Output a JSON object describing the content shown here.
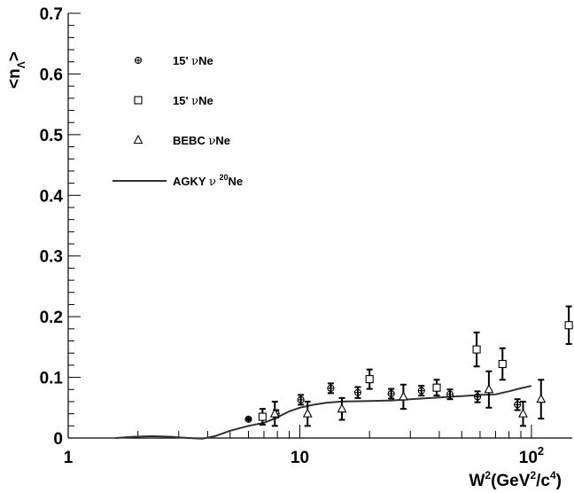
{
  "chart_data": {
    "type": "scatter",
    "x_scale": "log",
    "xlim": [
      1,
      150
    ],
    "ylim": [
      0,
      0.7
    ],
    "xlabel": {
      "base": "W",
      "sup1": "2",
      "mid": "(GeV",
      "sup2": "2",
      "mid2": "/c",
      "sup3": "4",
      "end": ")"
    },
    "ylabel": {
      "open": "<n",
      "sub": "Λ",
      "close": ">"
    },
    "x_ticks": [
      {
        "value": 1,
        "label": "1"
      },
      {
        "value": 10,
        "label": "10"
      },
      {
        "value": 100,
        "label": "10",
        "sup": "2"
      }
    ],
    "y_ticks": [
      {
        "value": 0,
        "label": "0"
      },
      {
        "value": 0.1,
        "label": "0.1"
      },
      {
        "value": 0.2,
        "label": "0.2"
      },
      {
        "value": 0.3,
        "label": "0.3"
      },
      {
        "value": 0.4,
        "label": "0.4"
      },
      {
        "value": 0.5,
        "label": "0.5"
      },
      {
        "value": 0.6,
        "label": "0.6"
      },
      {
        "value": 0.7,
        "label": "0.7"
      }
    ],
    "grid": false,
    "legend_position": "top-left",
    "series": [
      {
        "name": "15' νNe",
        "label": {
          "pre": "15' ",
          "nu": "ν",
          "post": "Ne"
        },
        "marker": "crossed-circle",
        "points": [
          {
            "x": 6.0,
            "y": 0.031,
            "err": 0.002
          },
          {
            "x": 7.9,
            "y": 0.04,
            "err": 0.006
          },
          {
            "x": 10.1,
            "y": 0.063,
            "err": 0.008
          },
          {
            "x": 13.6,
            "y": 0.082,
            "err": 0.008
          },
          {
            "x": 17.8,
            "y": 0.075,
            "err": 0.009
          },
          {
            "x": 24.8,
            "y": 0.073,
            "err": 0.008
          },
          {
            "x": 33.5,
            "y": 0.078,
            "err": 0.008
          },
          {
            "x": 44.5,
            "y": 0.072,
            "err": 0.008
          },
          {
            "x": 58.5,
            "y": 0.068,
            "err": 0.009
          },
          {
            "x": 87.0,
            "y": 0.055,
            "err": 0.009
          }
        ]
      },
      {
        "name": "15' νNe",
        "label": {
          "pre": "15' ",
          "nu": "ν",
          "post": "Ne"
        },
        "marker": "open-square",
        "points": [
          {
            "x": 6.9,
            "y": 0.035,
            "err": 0.013
          },
          {
            "x": 20.0,
            "y": 0.097,
            "err": 0.016
          },
          {
            "x": 39.0,
            "y": 0.083,
            "err": 0.013
          },
          {
            "x": 58.0,
            "y": 0.146,
            "err": 0.028
          },
          {
            "x": 75.0,
            "y": 0.122,
            "err": 0.026
          },
          {
            "x": 145.0,
            "y": 0.186,
            "err": 0.031
          }
        ]
      },
      {
        "name": "BEBC νNe",
        "label": {
          "pre": "BEBC ",
          "nu": "ν",
          "post": "Ne"
        },
        "marker": "open-triangle",
        "points": [
          {
            "x": 7.8,
            "y": 0.04,
            "err": 0.02
          },
          {
            "x": 10.8,
            "y": 0.04,
            "err": 0.02
          },
          {
            "x": 15.2,
            "y": 0.048,
            "err": 0.018
          },
          {
            "x": 28.0,
            "y": 0.068,
            "err": 0.02
          },
          {
            "x": 65.5,
            "y": 0.08,
            "err": 0.03
          },
          {
            "x": 92.0,
            "y": 0.04,
            "err": 0.02
          },
          {
            "x": 110.0,
            "y": 0.064,
            "err": 0.032
          }
        ]
      },
      {
        "name": "AGKY ν 20Ne",
        "label": {
          "pre": "AGKY ",
          "nu": "ν",
          "sup": "20",
          "post": "Ne"
        },
        "marker": "line",
        "points": [
          {
            "x": 1.6,
            "y": 0.0
          },
          {
            "x": 1.9,
            "y": 0.002
          },
          {
            "x": 2.3,
            "y": 0.003
          },
          {
            "x": 2.8,
            "y": 0.002
          },
          {
            "x": 3.3,
            "y": 0.0
          },
          {
            "x": 3.8,
            "y": -0.001
          },
          {
            "x": 4.3,
            "y": 0.003
          },
          {
            "x": 5.0,
            "y": 0.012
          },
          {
            "x": 6.0,
            "y": 0.02
          },
          {
            "x": 7.0,
            "y": 0.025
          },
          {
            "x": 8.0,
            "y": 0.034
          },
          {
            "x": 9.0,
            "y": 0.044
          },
          {
            "x": 10.0,
            "y": 0.05
          },
          {
            "x": 11.5,
            "y": 0.055
          },
          {
            "x": 13.0,
            "y": 0.058
          },
          {
            "x": 15.0,
            "y": 0.06
          },
          {
            "x": 20.0,
            "y": 0.061
          },
          {
            "x": 25.0,
            "y": 0.062
          },
          {
            "x": 30.0,
            "y": 0.064
          },
          {
            "x": 40.0,
            "y": 0.067
          },
          {
            "x": 50.0,
            "y": 0.069
          },
          {
            "x": 60.0,
            "y": 0.071
          },
          {
            "x": 70.0,
            "y": 0.072
          },
          {
            "x": 80.0,
            "y": 0.077
          },
          {
            "x": 90.0,
            "y": 0.082
          },
          {
            "x": 100.0,
            "y": 0.086
          }
        ]
      }
    ]
  }
}
